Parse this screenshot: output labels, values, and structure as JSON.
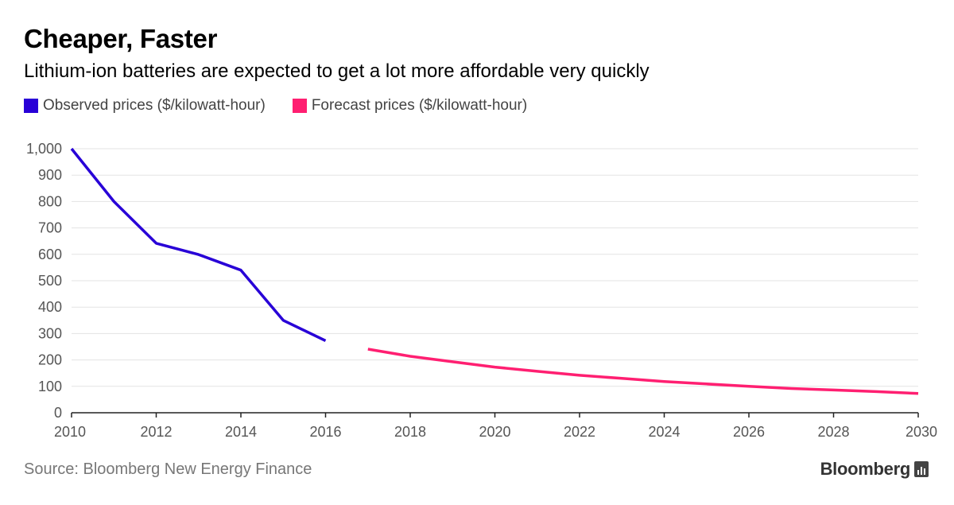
{
  "header": {
    "title": "Cheaper, Faster",
    "subtitle": "Lithium-ion batteries are expected to get a lot more affordable very quickly"
  },
  "legend": {
    "items": [
      {
        "label": "Observed prices ($/kilowatt-hour)",
        "color": "#2800d7"
      },
      {
        "label": "Forecast prices ($/kilowatt-hour)",
        "color": "#ff1f71"
      }
    ]
  },
  "footer": {
    "source": "Source: Bloomberg New Energy Finance",
    "brand": "Bloomberg",
    "brand_icon": "bloomberg-terminal-icon"
  },
  "chart_data": {
    "type": "line",
    "xlim": [
      2010,
      2030
    ],
    "ylim": [
      0,
      1000
    ],
    "x_ticks": [
      2010,
      2012,
      2014,
      2016,
      2018,
      2020,
      2022,
      2024,
      2026,
      2028,
      2030
    ],
    "y_ticks": [
      0,
      100,
      200,
      300,
      400,
      500,
      600,
      700,
      800,
      900,
      1000
    ],
    "y_tick_labels": [
      "0",
      "100",
      "200",
      "300",
      "400",
      "500",
      "600",
      "700",
      "800",
      "900",
      "1,000"
    ],
    "grid": true,
    "legend_position": "top-left",
    "series": [
      {
        "name": "Observed prices ($/kilowatt-hour)",
        "color": "#2800d7",
        "points": [
          [
            2010,
            1000
          ],
          [
            2011,
            800
          ],
          [
            2012,
            642
          ],
          [
            2013,
            599
          ],
          [
            2014,
            540
          ],
          [
            2015,
            350
          ],
          [
            2016,
            273
          ]
        ]
      },
      {
        "name": "Forecast prices ($/kilowatt-hour)",
        "color": "#ff1f71",
        "points": [
          [
            2017,
            241
          ],
          [
            2018,
            214
          ],
          [
            2019,
            193
          ],
          [
            2020,
            173
          ],
          [
            2021,
            157
          ],
          [
            2022,
            142
          ],
          [
            2023,
            130
          ],
          [
            2024,
            118
          ],
          [
            2025,
            109
          ],
          [
            2026,
            100
          ],
          [
            2027,
            92
          ],
          [
            2028,
            86
          ],
          [
            2029,
            80
          ],
          [
            2030,
            73
          ]
        ]
      }
    ]
  }
}
